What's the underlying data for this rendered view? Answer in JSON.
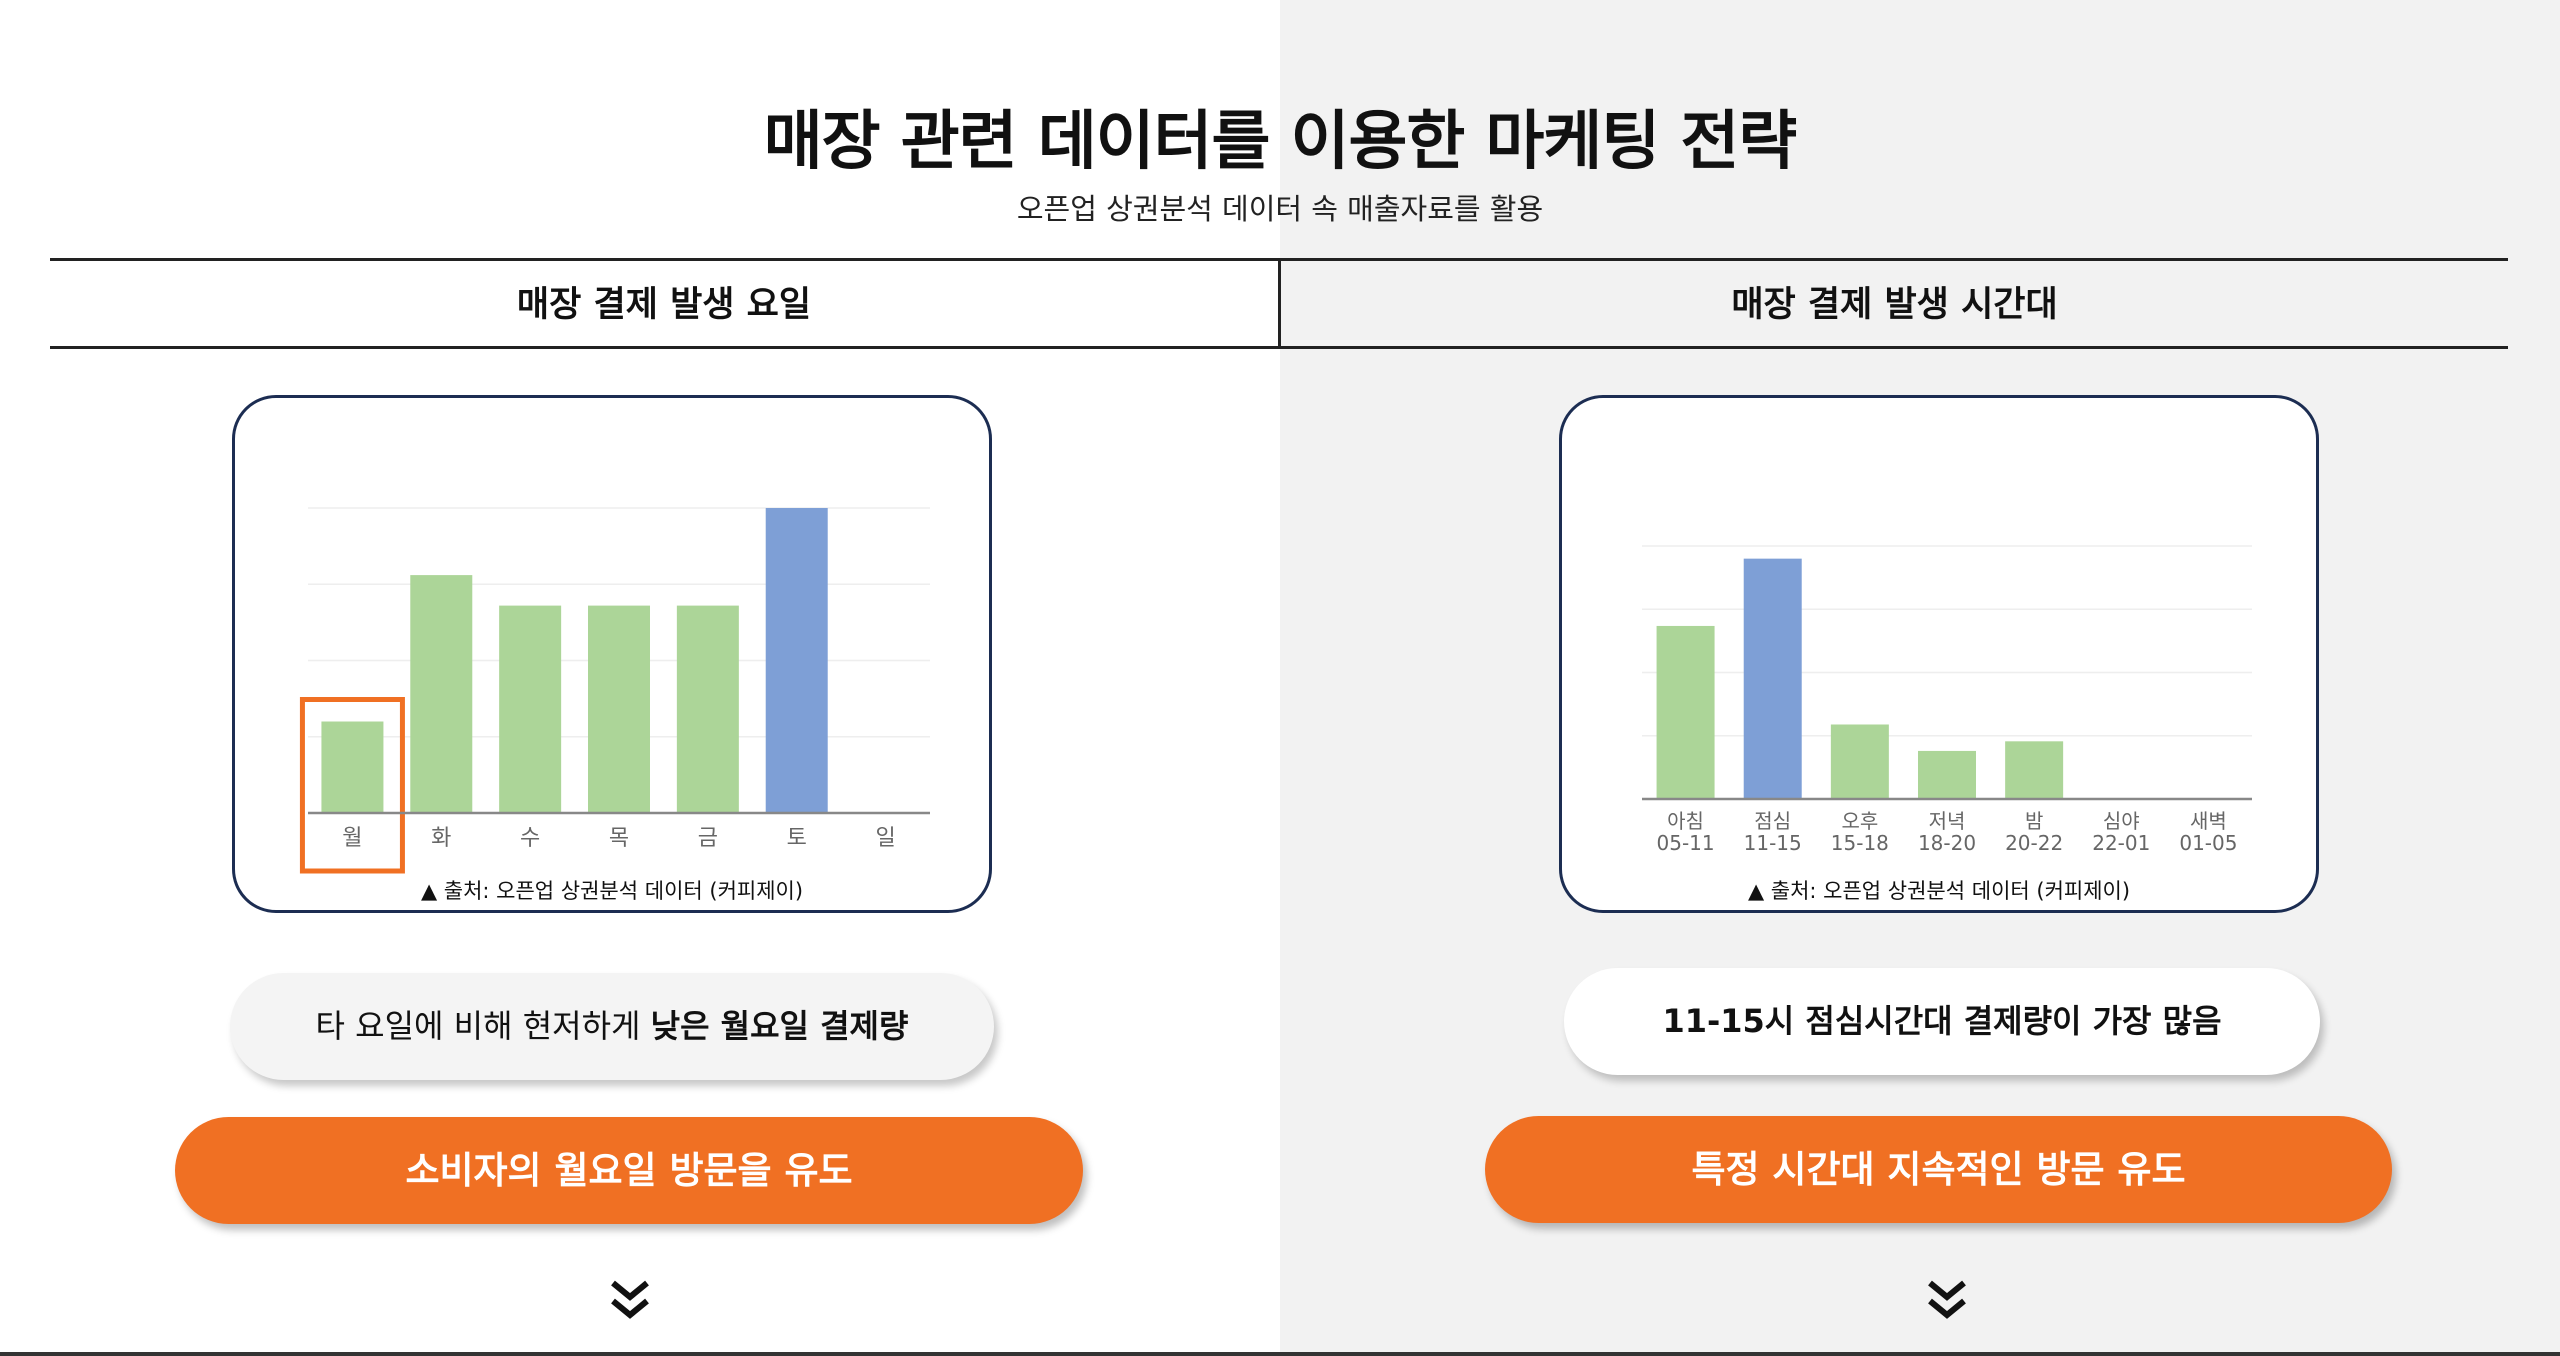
{
  "header": {
    "title": "매장 관련 데이터를 이용한 마케팅 전략",
    "subtitle": "오픈업 상권분석 데이터 속 매출자료를 활용"
  },
  "columns": {
    "left": {
      "heading": "매장 결제 발생 요일",
      "source": "▲ 출처: 오픈업 상권분석 데이터 (커피제이)",
      "summary_prefix": "타 요일에 비해 현저하게 ",
      "summary_bold": "낮은 월요일 결제량",
      "cta": "소비자의 월요일 방문을 유도",
      "chevron_icon": "double-chevron-down-icon"
    },
    "right": {
      "heading": "매장 결제 발생 시간대",
      "source": "▲ 출처: 오픈업 상권분석 데이터 (커피제이)",
      "summary": "11-15시 점심시간대 결제량이 가장 많음",
      "cta": "특정 시간대 지속적인 방문 유도",
      "chevron_icon": "double-chevron-down-icon"
    }
  },
  "colors": {
    "accent": "#f07023",
    "bar_default": "#acd598",
    "bar_highlight": "#7e9fd6",
    "card_border": "#1c2d52"
  },
  "chart_data": [
    {
      "type": "bar",
      "categories": [
        "월",
        "화",
        "수",
        "목",
        "금",
        "토",
        "일"
      ],
      "values": [
        3.0,
        7.8,
        6.8,
        6.8,
        6.8,
        10.0,
        0
      ],
      "highlight_index": 5,
      "boxed_index": 0,
      "ylim": [
        0,
        10
      ],
      "grid": true
    },
    {
      "type": "bar",
      "categories": [
        "아침",
        "점심",
        "오후",
        "저녁",
        "밤",
        "심야",
        "새벽"
      ],
      "categories_sub": [
        "05-11",
        "11-15",
        "15-18",
        "18-20",
        "20-22",
        "22-01",
        "01-05"
      ],
      "values": [
        7.2,
        10.0,
        3.1,
        2.0,
        2.4,
        0,
        0
      ],
      "highlight_index": 1,
      "ylim": [
        0,
        10
      ],
      "grid": true
    }
  ]
}
